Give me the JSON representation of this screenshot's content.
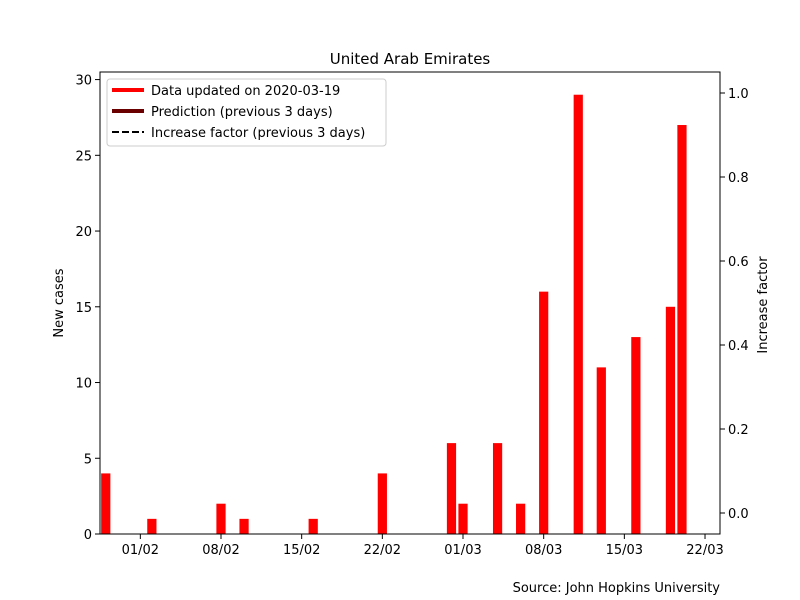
{
  "chart_data": {
    "type": "bar",
    "title": "United Arab Emirates",
    "ylabel": "New cases",
    "y2label": "Increase factor",
    "source": "Source: John Hopkins University",
    "x": [
      "2020-01-29",
      "2020-01-30",
      "2020-01-31",
      "2020-02-01",
      "2020-02-02",
      "2020-02-03",
      "2020-02-04",
      "2020-02-05",
      "2020-02-06",
      "2020-02-07",
      "2020-02-08",
      "2020-02-09",
      "2020-02-10",
      "2020-02-11",
      "2020-02-12",
      "2020-02-13",
      "2020-02-14",
      "2020-02-15",
      "2020-02-16",
      "2020-02-17",
      "2020-02-18",
      "2020-02-19",
      "2020-02-20",
      "2020-02-21",
      "2020-02-22",
      "2020-02-23",
      "2020-02-24",
      "2020-02-25",
      "2020-02-26",
      "2020-02-27",
      "2020-02-28",
      "2020-02-29",
      "2020-03-01",
      "2020-03-02",
      "2020-03-03",
      "2020-03-04",
      "2020-03-05",
      "2020-03-06",
      "2020-03-07",
      "2020-03-08",
      "2020-03-09",
      "2020-03-10",
      "2020-03-11",
      "2020-03-12",
      "2020-03-13",
      "2020-03-14",
      "2020-03-15",
      "2020-03-16",
      "2020-03-17",
      "2020-03-18",
      "2020-03-19"
    ],
    "values": [
      4,
      0,
      0,
      0,
      1,
      0,
      0,
      0,
      0,
      0,
      2,
      0,
      1,
      0,
      0,
      0,
      0,
      0,
      1,
      0,
      0,
      0,
      0,
      0,
      4,
      0,
      0,
      0,
      0,
      0,
      6,
      2,
      0,
      0,
      6,
      0,
      2,
      0,
      16,
      0,
      0,
      29,
      0,
      11,
      0,
      0,
      13,
      0,
      0,
      15,
      27
    ],
    "ylim": [
      0,
      30.5
    ],
    "yticks": [
      "0",
      "5",
      "10",
      "15",
      "20",
      "25",
      "30"
    ],
    "y2lim": [
      -0.05,
      1.05
    ],
    "y2ticks": [
      "0.0",
      "0.2",
      "0.4",
      "0.6",
      "0.8",
      "1.0"
    ],
    "xtick_labels": [
      "01/02",
      "08/02",
      "15/02",
      "22/02",
      "01/03",
      "08/03",
      "15/03",
      "22/03"
    ],
    "legend": [
      {
        "label": "Data updated on 2020-03-19",
        "color": "#ff0000",
        "style": "solid"
      },
      {
        "label": "Prediction (previous 3 days)",
        "color": "#6b0000",
        "style": "solid"
      },
      {
        "label": "Increase factor (previous 3 days)",
        "color": "#000000",
        "style": "dashed"
      }
    ],
    "legend_position": "top-left",
    "bar_color": "#ff0000",
    "grid": false
  }
}
